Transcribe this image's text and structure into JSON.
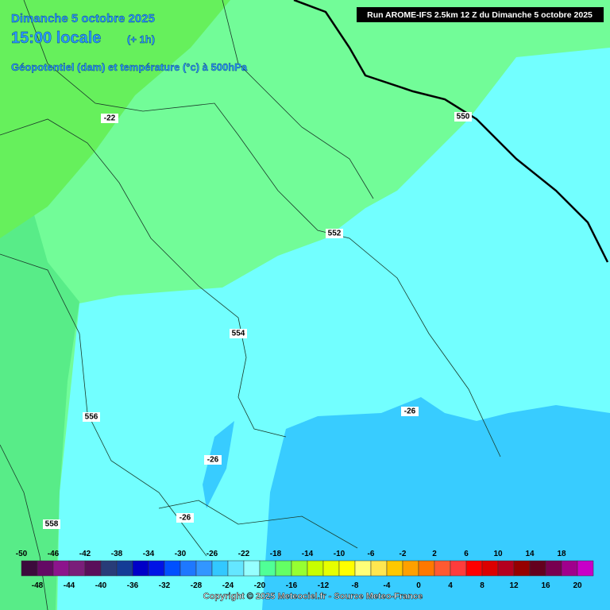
{
  "header": {
    "date": "Dimanche 5 octobre 2025",
    "time": "15:00 locale",
    "offset": "(+ 1h)",
    "parameter": "Géopotentiel (dam) et température (°c) à 500hPa",
    "run": "Run AROME-IFS 2.5km 12 Z du Dimanche 5 octobre 2025"
  },
  "contour_labels": [
    "-22",
    "550",
    "552",
    "554",
    "556",
    "558",
    "-26",
    "-26",
    "-26"
  ],
  "legend": {
    "top_labels": [
      -50,
      -46,
      -42,
      -38,
      -34,
      -30,
      -26,
      -22,
      -18,
      -14,
      -10,
      -6,
      -2,
      2,
      6,
      10,
      14,
      18
    ],
    "bottom_labels": [
      -48,
      -44,
      -40,
      -36,
      -32,
      -28,
      -24,
      -20,
      -16,
      -12,
      -8,
      -4,
      0,
      4,
      8,
      12,
      16,
      20
    ]
  },
  "copyright": "Copyright © 2025 Meteociel.fr - Source Meteo-France"
}
